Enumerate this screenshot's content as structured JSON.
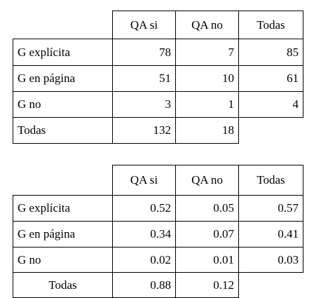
{
  "tables": [
    {
      "header": [
        "QA si",
        "QA no",
        "Todas"
      ],
      "rows": [
        [
          "G explícita",
          78,
          7,
          85
        ],
        [
          "G en página",
          51,
          10,
          61
        ],
        [
          "G no",
          3,
          1,
          4
        ],
        [
          "Todas",
          132,
          18
        ]
      ]
    },
    {
      "header": [
        "QA si",
        "QA no",
        "Todas"
      ],
      "rows": [
        [
          "G explícita",
          0.52,
          0.05,
          0.57
        ],
        [
          "G en página",
          0.34,
          0.07,
          0.41
        ],
        [
          "G no",
          0.02,
          0.01,
          0.03
        ],
        [
          "Todas",
          0.88,
          0.12
        ]
      ]
    }
  ]
}
